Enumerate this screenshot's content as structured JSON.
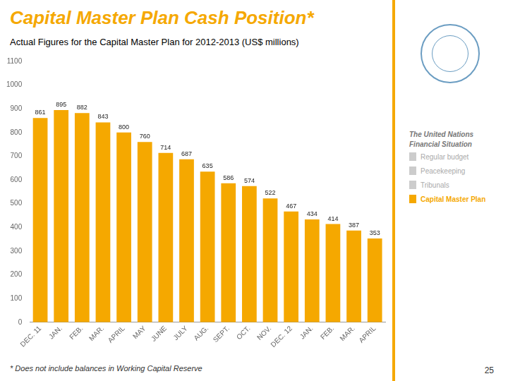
{
  "chart_data": {
    "type": "bar",
    "title": "Capital Master Plan Cash Position*",
    "title_color": "#F5A800",
    "subtitle": "Actual Figures for the Capital Master Plan for 2012-2013 (US$ millions)",
    "categories": [
      "DEC. 11",
      "JAN.",
      "FEB.",
      "MAR.",
      "APRIL",
      "MAY",
      "JUNE",
      "JULY",
      "AUG.",
      "SEPT.",
      "OCT.",
      "NOV.",
      "DEC. 12",
      "JAN.",
      "FEB.",
      "MAR.",
      "APRIL"
    ],
    "values": [
      861,
      895,
      882,
      843,
      800,
      760,
      714,
      687,
      635,
      586,
      574,
      522,
      467,
      434,
      414,
      387,
      353
    ],
    "color": "#F5A800",
    "ylim": [
      0,
      1100
    ],
    "yticks": [
      0,
      100,
      200,
      300,
      400,
      500,
      600,
      700,
      800,
      900,
      1000,
      1100
    ],
    "grid": false,
    "legend": false,
    "data_labels": true,
    "panel_title": "The United Nations\nFinancial Situation",
    "panel_items": [
      {
        "name": "Regular budget",
        "color": "#CCCCCC"
      },
      {
        "name": "Peacekeeping",
        "color": "#CCCCCC"
      },
      {
        "name": "Tribunals",
        "color": "#CCCCCC"
      },
      {
        "name": "Capital Master Plan",
        "color": "#F5A800"
      }
    ],
    "footnote": "* Does not include balances in Working Capital Reserve",
    "page_number": "25"
  }
}
